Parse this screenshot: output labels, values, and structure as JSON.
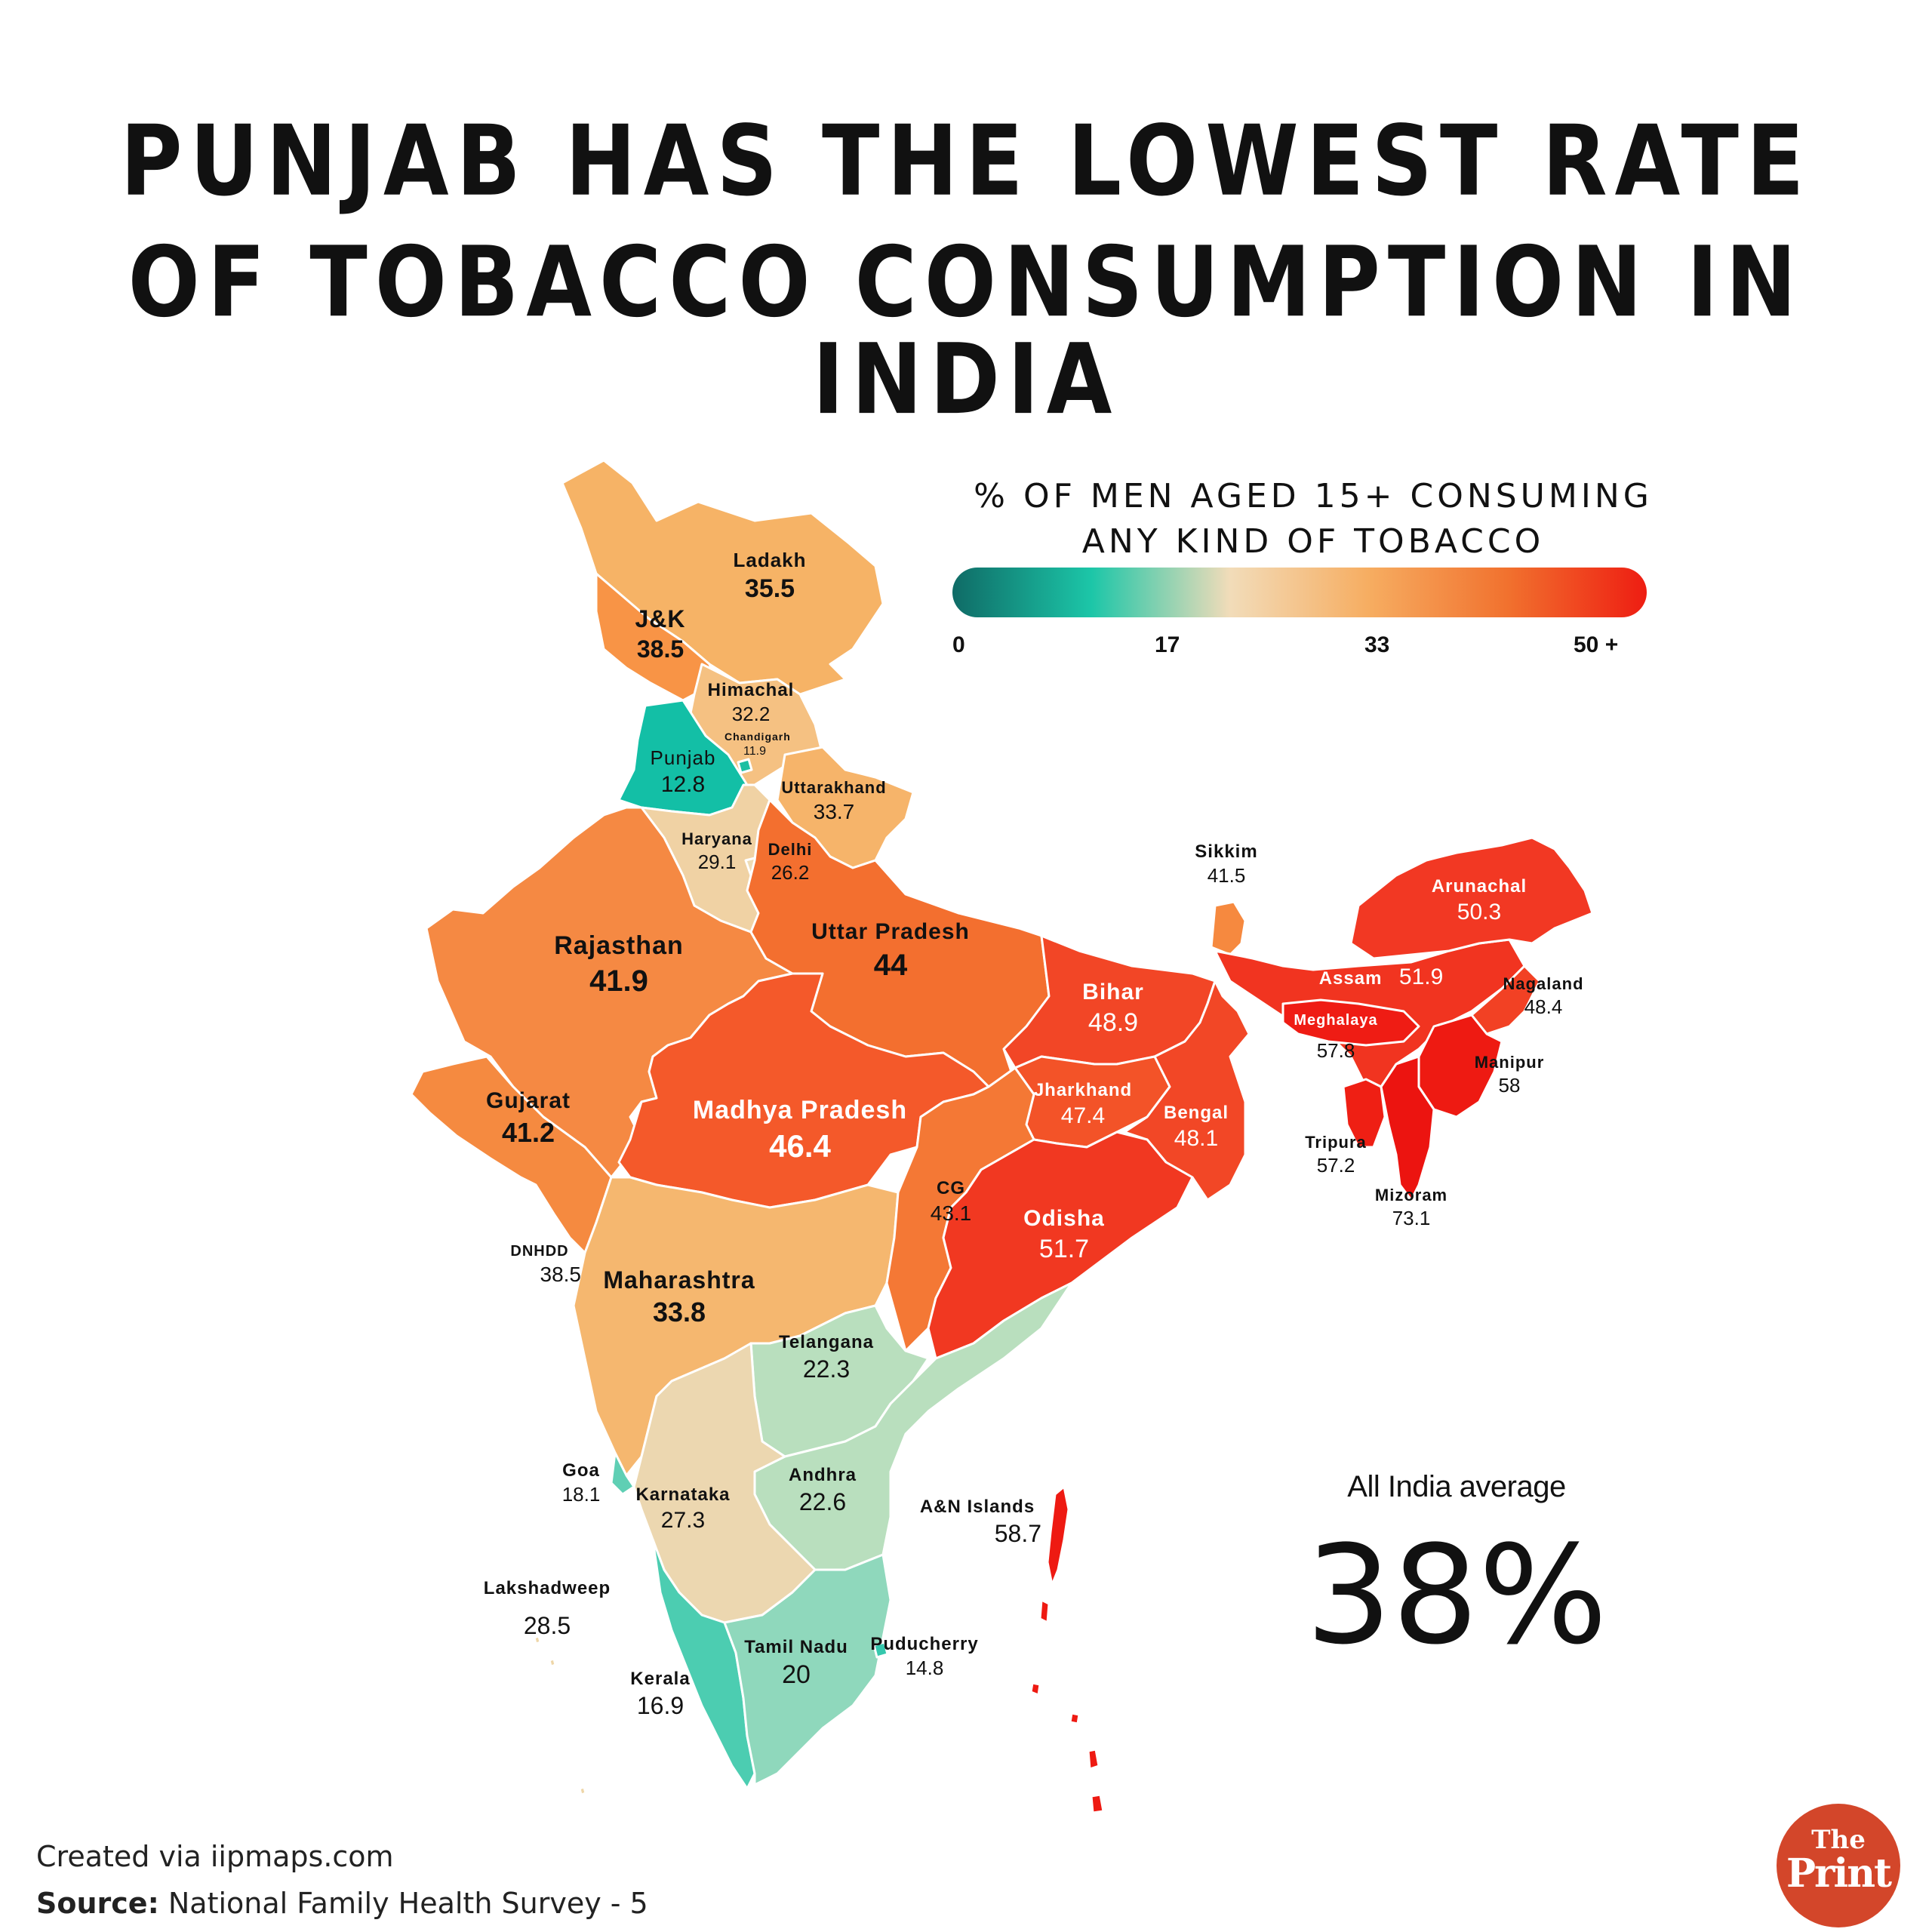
{
  "title": {
    "line1": "PUNJAB HAS THE LOWEST RATE",
    "line2": "OF TOBACCO CONSUMPTION IN INDIA"
  },
  "legend": {
    "title_line1": "% OF MEN AGED 15+ CONSUMING",
    "title_line2": "ANY KIND OF TOBACCO",
    "ticks": [
      "0",
      "17",
      "33",
      "50 +"
    ],
    "colors": [
      "#0f6b66",
      "#1cc6a8",
      "#f2dcb9",
      "#f6ad61",
      "#f1712e",
      "#ee1d12"
    ]
  },
  "regions": {
    "ladakh": {
      "name": "Ladakh",
      "value": "35.5",
      "color": "#f6b366"
    },
    "jk": {
      "name": "J&K",
      "value": "38.5",
      "color": "#f89446"
    },
    "himachal": {
      "name": "Himachal",
      "value": "32.2",
      "color": "#f5c182"
    },
    "chandigarh": {
      "name": "Chandigarh",
      "value": "11.9",
      "color": "#1cbfa3"
    },
    "punjab": {
      "name": "Punjab",
      "value": "12.8",
      "color": "#13bfa6"
    },
    "uttarakhand": {
      "name": "Uttarakhand",
      "value": "33.7",
      "color": "#f6b46a"
    },
    "haryana": {
      "name": "Haryana",
      "value": "29.1",
      "color": "#f0d2a4"
    },
    "delhi": {
      "name": "Delhi",
      "value": "26.2",
      "color": "#eedcb5"
    },
    "rajasthan": {
      "name": "Rajasthan",
      "value": "41.9",
      "color": "#f58943"
    },
    "uttar_pradesh": {
      "name": "Uttar Pradesh",
      "value": "44",
      "color": "#f36f2f"
    },
    "sikkim": {
      "name": "Sikkim",
      "value": "41.5",
      "color": "#f6893f"
    },
    "arunachal": {
      "name": "Arunachal",
      "value": "50.3",
      "color": "#f23823"
    },
    "assam": {
      "name": "Assam",
      "value": "51.9",
      "color": "#f13420"
    },
    "nagaland": {
      "name": "Nagaland",
      "value": "48.4",
      "color": "#f24124"
    },
    "meghalaya": {
      "name": "Meghalaya",
      "value": "57.8",
      "color": "#ef1c14"
    },
    "manipur": {
      "name": "Manipur",
      "value": "58",
      "color": "#ee1a12"
    },
    "tripura": {
      "name": "Tripura",
      "value": "57.2",
      "color": "#ef1f14"
    },
    "mizoram": {
      "name": "Mizoram",
      "value": "73.1",
      "color": "#ec1410"
    },
    "bihar": {
      "name": "Bihar",
      "value": "48.9",
      "color": "#f24626"
    },
    "jharkhand": {
      "name": "Jharkhand",
      "value": "47.4",
      "color": "#f35328"
    },
    "bengal": {
      "name": "Bengal",
      "value": "48.1",
      "color": "#f24726"
    },
    "gujarat": {
      "name": "Gujarat",
      "value": "41.2",
      "color": "#f58a40"
    },
    "madhya_pradesh": {
      "name": "Madhya Pradesh",
      "value": "46.4",
      "color": "#f4592a"
    },
    "chhattisgarh": {
      "name": "CG",
      "value": "43.1",
      "color": "#f47835"
    },
    "odisha": {
      "name": "Odisha",
      "value": "51.7",
      "color": "#f13821"
    },
    "dnhdd": {
      "name": "DNHDD",
      "value": "38.5",
      "color": "#f89446"
    },
    "maharashtra": {
      "name": "Maharashtra",
      "value": "33.8",
      "color": "#f5b76f"
    },
    "telangana": {
      "name": "Telangana",
      "value": "22.3",
      "color": "#b9dfbe"
    },
    "goa": {
      "name": "Goa",
      "value": "18.1",
      "color": "#5fcfb4"
    },
    "karnataka": {
      "name": "Karnataka",
      "value": "27.3",
      "color": "#ecd7b0"
    },
    "andhra": {
      "name": "Andhra",
      "value": "22.6",
      "color": "#b9dfbe"
    },
    "an_islands": {
      "name": "A&N Islands",
      "value": "58.7",
      "color": "#ee1a12"
    },
    "lakshadweep": {
      "name": "Lakshadweep",
      "value": "28.5",
      "color": "#eed6a8"
    },
    "kerala": {
      "name": "Kerala",
      "value": "16.9",
      "color": "#4ccdb1"
    },
    "tamil_nadu": {
      "name": "Tamil Nadu",
      "value": "20",
      "color": "#8fd8bc"
    },
    "puducherry": {
      "name": "Puducherry",
      "value": "14.8",
      "color": "#35c8ad"
    }
  },
  "average": {
    "label": "All India average",
    "value": "38%"
  },
  "footer": {
    "credit": "Created via iipmaps.com",
    "source_label": "Source:",
    "source_text": "National Family Health Survey - 5"
  },
  "logo": {
    "line1": "The",
    "line2": "Print",
    "color": "#d3462a"
  }
}
